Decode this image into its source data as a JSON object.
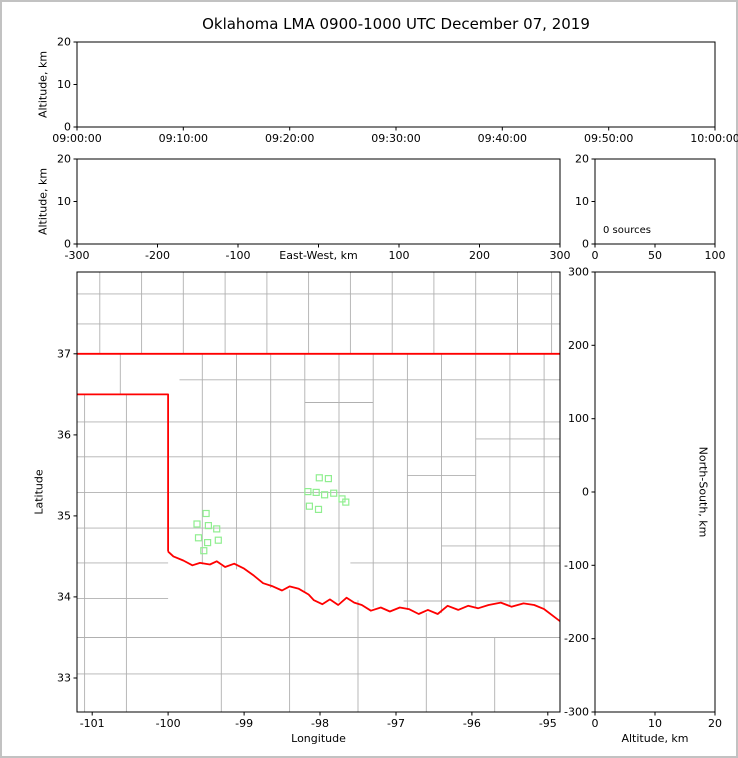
{
  "figure": {
    "title": "Oklahoma LMA 0900-1000 UTC December 07, 2019"
  },
  "colors": {
    "axis": "#000000",
    "county_line": "#b0b0b0",
    "state_border": "#ff0000",
    "station_marker": "#90ee90",
    "page_frame": "#c2c2c2",
    "background": "#ffffff"
  },
  "chart_data": [
    {
      "id": "time-height",
      "type": "scatter",
      "description": "Source altitude vs time panel (empty, no lightning sources)",
      "xlim": [
        0,
        3600
      ],
      "ylim": [
        0,
        20
      ],
      "xtick_values": [
        0,
        600,
        1200,
        1800,
        2400,
        3000,
        3600
      ],
      "xtick_labels": [
        "09:00:00",
        "09:10:00",
        "09:20:00",
        "09:30:00",
        "09:40:00",
        "09:50:00",
        "10:00:00"
      ],
      "ytick_values": [
        0,
        10,
        20
      ],
      "ytick_labels": [
        "0",
        "10",
        "20"
      ],
      "xlabel": "",
      "ylabel": "Altitude, km",
      "points": []
    },
    {
      "id": "ew-height",
      "type": "scatter",
      "description": "Source altitude vs east-west distance panel (empty)",
      "xlim": [
        -300,
        300
      ],
      "ylim": [
        0,
        20
      ],
      "xtick_values": [
        -300,
        -200,
        -100,
        0,
        100,
        200,
        300
      ],
      "xtick_labels": [
        "-300",
        "-200",
        "-100",
        "",
        "100",
        "200",
        "300"
      ],
      "ytick_values": [
        0,
        10,
        20
      ],
      "ytick_labels": [
        "0",
        "10",
        "20"
      ],
      "xlabel": "East-West, km",
      "xlabel_inline": true,
      "ylabel": "Altitude, km",
      "points": []
    },
    {
      "id": "alt-hist",
      "type": "scatter",
      "description": "Altitude histogram panel",
      "xlim": [
        0,
        100
      ],
      "ylim": [
        0,
        20
      ],
      "xtick_values": [
        0,
        50,
        100
      ],
      "xtick_labels": [
        "0",
        "50",
        "100"
      ],
      "ytick_values": [
        0,
        10,
        20
      ],
      "ytick_labels": [
        "0",
        "10",
        "20"
      ],
      "xlabel": "",
      "ylabel": "",
      "annotation": "0 sources",
      "source_count": 0,
      "points": []
    },
    {
      "id": "map",
      "type": "scatter",
      "description": "Plan-view map of Oklahoma with LMA station markers, county and state borders",
      "xlim": [
        -101.2,
        -94.84
      ],
      "ylim": [
        32.58,
        38.01
      ],
      "xtick_values": [
        -101,
        -100,
        -99,
        -98,
        -97,
        -96,
        -95
      ],
      "xtick_labels": [
        "-101",
        "-100",
        "-99",
        "-98",
        "-97",
        "-96",
        "-95"
      ],
      "ytick_values": [
        33,
        34,
        35,
        36,
        37
      ],
      "ytick_labels": [
        "33",
        "34",
        "35",
        "36",
        "37"
      ],
      "xlabel": "Longitude",
      "ylabel": "Latitude",
      "stations": [
        [
          -98.01,
          35.47
        ],
        [
          -97.89,
          35.46
        ],
        [
          -98.16,
          35.3
        ],
        [
          -98.05,
          35.29
        ],
        [
          -97.94,
          35.26
        ],
        [
          -97.82,
          35.28
        ],
        [
          -97.71,
          35.21
        ],
        [
          -97.66,
          35.17
        ],
        [
          -98.14,
          35.12
        ],
        [
          -98.02,
          35.08
        ],
        [
          -99.5,
          35.03
        ],
        [
          -99.62,
          34.9
        ],
        [
          -99.47,
          34.88
        ],
        [
          -99.36,
          34.84
        ],
        [
          -99.6,
          34.73
        ],
        [
          -99.48,
          34.67
        ],
        [
          -99.34,
          34.7
        ],
        [
          -99.53,
          34.57
        ]
      ],
      "state_border": [
        [
          [
            -101.2,
            37.0
          ],
          [
            -94.84,
            37.0
          ]
        ],
        [
          [
            -101.2,
            36.5
          ],
          [
            -100.0,
            36.5
          ],
          [
            -100.0,
            34.56
          ]
        ],
        [
          [
            -100.0,
            34.56
          ],
          [
            -99.93,
            34.5
          ],
          [
            -99.8,
            34.45
          ],
          [
            -99.68,
            34.39
          ],
          [
            -99.58,
            34.42
          ],
          [
            -99.45,
            34.4
          ],
          [
            -99.36,
            34.44
          ],
          [
            -99.25,
            34.37
          ],
          [
            -99.13,
            34.41
          ],
          [
            -99.0,
            34.35
          ],
          [
            -98.88,
            34.27
          ],
          [
            -98.75,
            34.17
          ],
          [
            -98.62,
            34.13
          ],
          [
            -98.5,
            34.08
          ],
          [
            -98.4,
            34.13
          ],
          [
            -98.28,
            34.1
          ],
          [
            -98.15,
            34.03
          ],
          [
            -98.08,
            33.96
          ],
          [
            -97.97,
            33.91
          ],
          [
            -97.87,
            33.97
          ],
          [
            -97.76,
            33.9
          ],
          [
            -97.65,
            33.99
          ],
          [
            -97.55,
            33.93
          ],
          [
            -97.45,
            33.9
          ],
          [
            -97.33,
            33.83
          ],
          [
            -97.2,
            33.87
          ],
          [
            -97.08,
            33.82
          ],
          [
            -96.95,
            33.87
          ],
          [
            -96.83,
            33.85
          ],
          [
            -96.7,
            33.79
          ],
          [
            -96.58,
            33.84
          ],
          [
            -96.45,
            33.79
          ],
          [
            -96.32,
            33.89
          ],
          [
            -96.18,
            33.84
          ],
          [
            -96.05,
            33.89
          ],
          [
            -95.92,
            33.86
          ],
          [
            -95.78,
            33.9
          ],
          [
            -95.62,
            33.93
          ],
          [
            -95.48,
            33.88
          ],
          [
            -95.32,
            33.92
          ],
          [
            -95.18,
            33.9
          ],
          [
            -95.05,
            33.85
          ],
          [
            -94.84,
            33.7
          ]
        ]
      ],
      "county_hlines": [
        [
          37.37,
          -101.2,
          -94.84
        ],
        [
          37.74,
          -101.2,
          -94.84
        ],
        [
          36.68,
          -99.85,
          -94.84
        ],
        [
          36.16,
          -101.2,
          -94.84
        ],
        [
          35.73,
          -101.2,
          -94.84
        ],
        [
          35.29,
          -101.2,
          -94.84
        ],
        [
          34.85,
          -101.2,
          -94.84
        ],
        [
          34.42,
          -101.2,
          -100.0
        ],
        [
          34.42,
          -97.6,
          -94.84
        ],
        [
          33.98,
          -101.2,
          -100.0
        ],
        [
          33.95,
          -96.9,
          -94.84
        ],
        [
          33.5,
          -101.2,
          -94.84
        ],
        [
          33.05,
          -101.2,
          -94.84
        ],
        [
          36.4,
          -98.2,
          -97.3
        ],
        [
          35.5,
          -96.85,
          -95.95
        ],
        [
          34.63,
          -96.4,
          -94.84
        ],
        [
          35.95,
          -95.95,
          -94.84
        ]
      ],
      "county_vlines": [
        [
          -100.9,
          37.0,
          38.01
        ],
        [
          -100.35,
          37.0,
          38.01
        ],
        [
          -99.8,
          37.0,
          38.01
        ],
        [
          -99.25,
          37.0,
          38.01
        ],
        [
          -98.7,
          37.0,
          38.01
        ],
        [
          -98.15,
          37.0,
          38.01
        ],
        [
          -97.6,
          37.0,
          38.01
        ],
        [
          -97.05,
          37.0,
          38.01
        ],
        [
          -96.5,
          37.0,
          38.01
        ],
        [
          -95.95,
          37.0,
          38.01
        ],
        [
          -95.4,
          37.0,
          38.01
        ],
        [
          -94.95,
          37.0,
          38.01
        ],
        [
          -101.1,
          32.58,
          36.5
        ],
        [
          -100.55,
          32.58,
          36.5
        ],
        [
          -100.63,
          36.5,
          37.0
        ],
        [
          -99.55,
          34.4,
          37.0
        ],
        [
          -99.1,
          34.34,
          37.0
        ],
        [
          -98.65,
          34.11,
          37.0
        ],
        [
          -98.2,
          34.05,
          37.0
        ],
        [
          -97.75,
          33.94,
          37.0
        ],
        [
          -97.3,
          33.87,
          37.0
        ],
        [
          -96.85,
          33.84,
          37.0
        ],
        [
          -96.4,
          33.8,
          37.0
        ],
        [
          -95.95,
          33.86,
          37.0
        ],
        [
          -95.5,
          33.89,
          37.0
        ],
        [
          -95.05,
          33.84,
          37.0
        ],
        [
          -99.3,
          32.58,
          34.38
        ],
        [
          -98.4,
          32.58,
          34.09
        ],
        [
          -97.5,
          32.58,
          33.96
        ],
        [
          -96.6,
          32.58,
          33.8
        ],
        [
          -95.7,
          32.58,
          33.5
        ]
      ]
    },
    {
      "id": "ns-height",
      "type": "scatter",
      "description": "North-south distance vs altitude panel (empty)",
      "xlim": [
        0,
        20
      ],
      "ylim": [
        -300,
        300
      ],
      "xtick_values": [
        0,
        10,
        20
      ],
      "xtick_labels": [
        "0",
        "10",
        "20"
      ],
      "ytick_values": [
        -300,
        -200,
        -100,
        0,
        100,
        200,
        300
      ],
      "ytick_labels": [
        "-300",
        "-200",
        "-100",
        "0",
        "100",
        "200",
        "300"
      ],
      "xlabel": "Altitude, km",
      "ylabel": "North-South, km",
      "ylabel_side": "right",
      "points": []
    }
  ]
}
